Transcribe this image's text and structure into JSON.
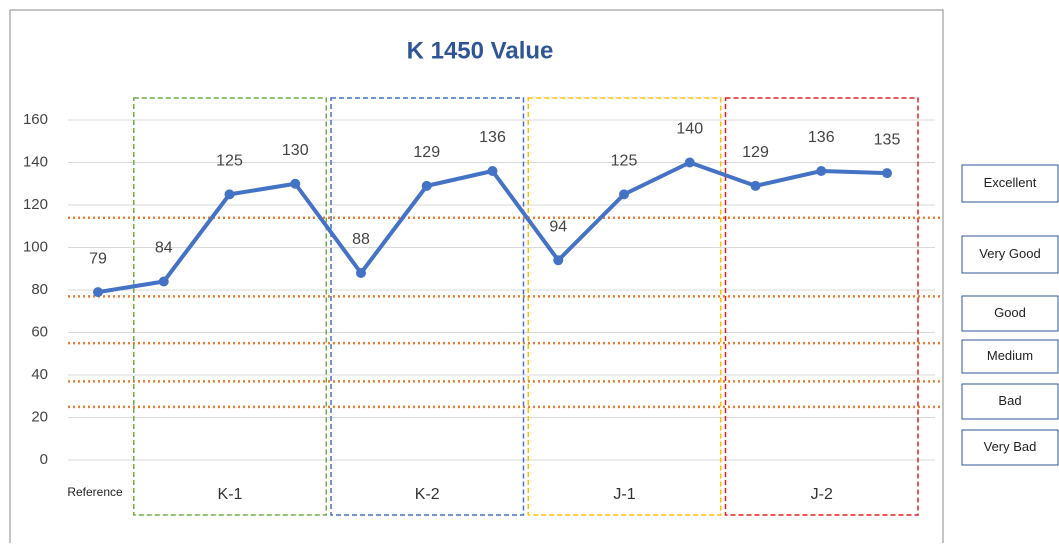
{
  "chart_data": {
    "type": "line",
    "title": "K 1450 Value",
    "categories": [
      "Reference",
      null,
      null,
      null,
      null,
      null,
      null,
      null,
      null,
      null,
      null,
      null,
      null
    ],
    "series": [
      {
        "name": "K 1450",
        "color": "#4472c4",
        "values": [
          79,
          84,
          125,
          130,
          88,
          129,
          136,
          94,
          125,
          140,
          129,
          136,
          135
        ]
      }
    ],
    "groups": [
      {
        "label": "K-1",
        "color": "#70ad47"
      },
      {
        "label": "K-2",
        "color": "#4472c4"
      },
      {
        "label": "J-1",
        "color": "#ffc000"
      },
      {
        "label": "J-2",
        "color": "#e02020"
      }
    ],
    "thresholds": [
      114,
      77,
      55,
      37,
      25
    ],
    "threshold_color": "#ed7d31",
    "ratings": [
      "Excellent",
      "Very Good",
      "Good",
      "Medium",
      "Bad",
      "Very Bad"
    ],
    "ylim": [
      0,
      160
    ],
    "yticks": [
      0,
      20,
      40,
      60,
      80,
      100,
      120,
      140,
      160
    ],
    "grid": true
  }
}
